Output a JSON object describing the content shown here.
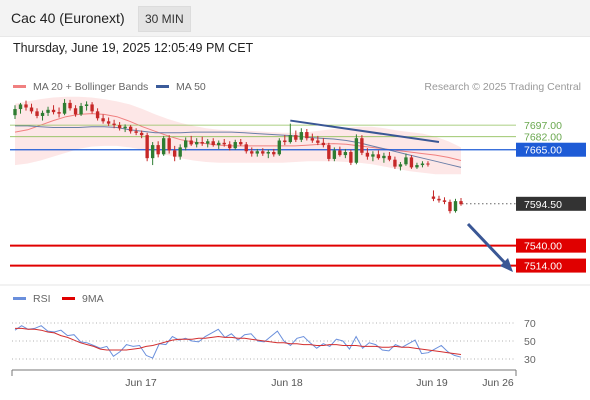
{
  "header": {
    "title": "Cac 40 (Euronext)",
    "interval": "30 MIN",
    "datetime": "Thursday, June 19, 2025 12:05:49 PM CET"
  },
  "legend_main": [
    {
      "label": "MA 20 + Bollinger Bands",
      "color": "#f08080"
    },
    {
      "label": "MA 50",
      "color": "#3b5b9a"
    }
  ],
  "credit": "Research © 2025 Trading Central",
  "legend_rsi": [
    {
      "label": "RSI",
      "color": "#6a8fdc"
    },
    {
      "label": "9MA",
      "color": "#e00000"
    }
  ],
  "colors": {
    "bull": "#2e7d32",
    "bear": "#c62828",
    "support": "#e00000",
    "pivot": "#1e5bd6",
    "resistance": "#8fbf5a",
    "last": "#333333",
    "trend": "#3a5795"
  },
  "chart_data": {
    "type": "candlestick",
    "price_axis": {
      "min": 7490,
      "max": 7735
    },
    "x_ticks": [
      "Jun 17",
      "Jun 18",
      "Jun 19",
      "Jun 26"
    ],
    "levels": [
      {
        "value": 7697.0,
        "label": "7697.00",
        "kind": "resistance"
      },
      {
        "value": 7682.0,
        "label": "7682.00",
        "kind": "resistance"
      },
      {
        "value": 7665.0,
        "label": "7665.00",
        "kind": "pivot"
      },
      {
        "value": 7594.5,
        "label": "7594.50",
        "kind": "last"
      },
      {
        "value": 7540.0,
        "label": "7540.00",
        "kind": "support"
      },
      {
        "value": 7514.0,
        "label": "7514.00",
        "kind": "support"
      }
    ],
    "candles": [
      {
        "o": 7710,
        "h": 7723,
        "l": 7705,
        "c": 7718
      },
      {
        "o": 7718,
        "h": 7726,
        "l": 7712,
        "c": 7724
      },
      {
        "o": 7724,
        "h": 7729,
        "l": 7716,
        "c": 7720
      },
      {
        "o": 7720,
        "h": 7725,
        "l": 7712,
        "c": 7715
      },
      {
        "o": 7715,
        "h": 7719,
        "l": 7706,
        "c": 7709
      },
      {
        "o": 7709,
        "h": 7716,
        "l": 7703,
        "c": 7713
      },
      {
        "o": 7713,
        "h": 7721,
        "l": 7709,
        "c": 7717
      },
      {
        "o": 7717,
        "h": 7723,
        "l": 7711,
        "c": 7714
      },
      {
        "o": 7714,
        "h": 7720,
        "l": 7707,
        "c": 7712
      },
      {
        "o": 7712,
        "h": 7731,
        "l": 7710,
        "c": 7726
      },
      {
        "o": 7726,
        "h": 7730,
        "l": 7716,
        "c": 7719
      },
      {
        "o": 7719,
        "h": 7723,
        "l": 7708,
        "c": 7711
      },
      {
        "o": 7711,
        "h": 7726,
        "l": 7709,
        "c": 7722
      },
      {
        "o": 7722,
        "h": 7728,
        "l": 7716,
        "c": 7724
      },
      {
        "o": 7724,
        "h": 7727,
        "l": 7712,
        "c": 7715
      },
      {
        "o": 7715,
        "h": 7719,
        "l": 7703,
        "c": 7706
      },
      {
        "o": 7706,
        "h": 7711,
        "l": 7699,
        "c": 7702
      },
      {
        "o": 7702,
        "h": 7707,
        "l": 7696,
        "c": 7699
      },
      {
        "o": 7699,
        "h": 7704,
        "l": 7693,
        "c": 7697
      },
      {
        "o": 7697,
        "h": 7701,
        "l": 7690,
        "c": 7693
      },
      {
        "o": 7693,
        "h": 7698,
        "l": 7688,
        "c": 7695
      },
      {
        "o": 7695,
        "h": 7697,
        "l": 7686,
        "c": 7689
      },
      {
        "o": 7689,
        "h": 7693,
        "l": 7684,
        "c": 7687
      },
      {
        "o": 7687,
        "h": 7690,
        "l": 7680,
        "c": 7684
      },
      {
        "o": 7684,
        "h": 7687,
        "l": 7650,
        "c": 7654
      },
      {
        "o": 7654,
        "h": 7675,
        "l": 7645,
        "c": 7671
      },
      {
        "o": 7671,
        "h": 7676,
        "l": 7655,
        "c": 7659
      },
      {
        "o": 7659,
        "h": 7683,
        "l": 7657,
        "c": 7680
      },
      {
        "o": 7680,
        "h": 7684,
        "l": 7660,
        "c": 7664
      },
      {
        "o": 7664,
        "h": 7670,
        "l": 7650,
        "c": 7656
      },
      {
        "o": 7656,
        "h": 7672,
        "l": 7652,
        "c": 7668
      },
      {
        "o": 7668,
        "h": 7681,
        "l": 7664,
        "c": 7677
      },
      {
        "o": 7677,
        "h": 7683,
        "l": 7670,
        "c": 7672
      },
      {
        "o": 7672,
        "h": 7680,
        "l": 7668,
        "c": 7675
      },
      {
        "o": 7675,
        "h": 7682,
        "l": 7670,
        "c": 7673
      },
      {
        "o": 7673,
        "h": 7679,
        "l": 7668,
        "c": 7676
      },
      {
        "o": 7676,
        "h": 7680,
        "l": 7669,
        "c": 7671
      },
      {
        "o": 7671,
        "h": 7677,
        "l": 7666,
        "c": 7674
      },
      {
        "o": 7674,
        "h": 7679,
        "l": 7669,
        "c": 7672
      },
      {
        "o": 7672,
        "h": 7676,
        "l": 7664,
        "c": 7667
      },
      {
        "o": 7667,
        "h": 7678,
        "l": 7665,
        "c": 7675
      },
      {
        "o": 7675,
        "h": 7679,
        "l": 7670,
        "c": 7672
      },
      {
        "o": 7672,
        "h": 7675,
        "l": 7660,
        "c": 7663
      },
      {
        "o": 7663,
        "h": 7668,
        "l": 7656,
        "c": 7660
      },
      {
        "o": 7660,
        "h": 7666,
        "l": 7656,
        "c": 7663
      },
      {
        "o": 7663,
        "h": 7667,
        "l": 7657,
        "c": 7660
      },
      {
        "o": 7660,
        "h": 7665,
        "l": 7654,
        "c": 7662
      },
      {
        "o": 7662,
        "h": 7666,
        "l": 7656,
        "c": 7659
      },
      {
        "o": 7659,
        "h": 7680,
        "l": 7657,
        "c": 7677
      },
      {
        "o": 7677,
        "h": 7684,
        "l": 7671,
        "c": 7675
      },
      {
        "o": 7675,
        "h": 7699,
        "l": 7673,
        "c": 7684
      },
      {
        "o": 7684,
        "h": 7690,
        "l": 7675,
        "c": 7678
      },
      {
        "o": 7678,
        "h": 7693,
        "l": 7675,
        "c": 7688
      },
      {
        "o": 7688,
        "h": 7692,
        "l": 7677,
        "c": 7680
      },
      {
        "o": 7680,
        "h": 7686,
        "l": 7674,
        "c": 7677
      },
      {
        "o": 7677,
        "h": 7683,
        "l": 7671,
        "c": 7674
      },
      {
        "o": 7674,
        "h": 7680,
        "l": 7668,
        "c": 7671
      },
      {
        "o": 7671,
        "h": 7674,
        "l": 7650,
        "c": 7653
      },
      {
        "o": 7653,
        "h": 7668,
        "l": 7650,
        "c": 7664
      },
      {
        "o": 7664,
        "h": 7669,
        "l": 7656,
        "c": 7658
      },
      {
        "o": 7658,
        "h": 7666,
        "l": 7654,
        "c": 7662
      },
      {
        "o": 7662,
        "h": 7665,
        "l": 7645,
        "c": 7648
      },
      {
        "o": 7648,
        "h": 7685,
        "l": 7646,
        "c": 7680
      },
      {
        "o": 7680,
        "h": 7684,
        "l": 7658,
        "c": 7661
      },
      {
        "o": 7661,
        "h": 7667,
        "l": 7652,
        "c": 7656
      },
      {
        "o": 7656,
        "h": 7663,
        "l": 7650,
        "c": 7659
      },
      {
        "o": 7659,
        "h": 7664,
        "l": 7652,
        "c": 7654
      },
      {
        "o": 7654,
        "h": 7661,
        "l": 7648,
        "c": 7657
      },
      {
        "o": 7657,
        "h": 7662,
        "l": 7650,
        "c": 7652
      },
      {
        "o": 7652,
        "h": 7656,
        "l": 7640,
        "c": 7643
      },
      {
        "o": 7643,
        "h": 7649,
        "l": 7638,
        "c": 7646
      },
      {
        "o": 7646,
        "h": 7660,
        "l": 7644,
        "c": 7655
      },
      {
        "o": 7655,
        "h": 7658,
        "l": 7640,
        "c": 7642
      },
      {
        "o": 7642,
        "h": 7648,
        "l": 7640,
        "c": 7645
      },
      {
        "o": 7645,
        "h": 7650,
        "l": 7642,
        "c": 7647
      },
      {
        "o": 7647,
        "h": 7650,
        "l": 7643,
        "c": 7646
      },
      {
        "o": 7604,
        "h": 7612,
        "l": 7598,
        "c": 7601
      },
      {
        "o": 7601,
        "h": 7605,
        "l": 7596,
        "c": 7599
      },
      {
        "o": 7599,
        "h": 7603,
        "l": 7594,
        "c": 7597
      },
      {
        "o": 7597,
        "h": 7600,
        "l": 7582,
        "c": 7585
      },
      {
        "o": 7585,
        "h": 7601,
        "l": 7583,
        "c": 7598
      },
      {
        "o": 7598,
        "h": 7602,
        "l": 7592,
        "c": 7594
      }
    ],
    "bollinger": {
      "upper": [
        7725,
        7728,
        7731,
        7733,
        7734,
        7734,
        7733,
        7731,
        7728,
        7724,
        7718,
        7711,
        7705,
        7700,
        7696,
        7693,
        7691,
        7690,
        7690,
        7689,
        7688,
        7687,
        7687,
        7688,
        7690,
        7692,
        7694,
        7695,
        7695,
        7693,
        7690,
        7688,
        7686,
        7682,
        7676,
        7668
      ],
      "lower": [
        7645,
        7647,
        7651,
        7656,
        7661,
        7666,
        7669,
        7670,
        7670,
        7668,
        7665,
        7662,
        7658,
        7654,
        7651,
        7649,
        7648,
        7648,
        7648,
        7648,
        7648,
        7648,
        7649,
        7650,
        7650,
        7650,
        7649,
        7648,
        7646,
        7643,
        7640,
        7637,
        7635,
        7633,
        7633,
        7633
      ]
    },
    "ma20": [
      7688,
      7691,
      7697,
      7703,
      7708,
      7711,
      7712,
      7711,
      7708,
      7702,
      7695,
      7689,
      7683,
      7678,
      7675,
      7673,
      7671,
      7670,
      7670,
      7670,
      7670,
      7670,
      7670,
      7671,
      7672,
      7673,
      7672,
      7670,
      7668,
      7666,
      7664,
      7662,
      7660,
      7658,
      7655,
      7651
    ],
    "ma50": [
      7696,
      7696,
      7695,
      7694,
      7694,
      7694,
      7695,
      7695,
      7694,
      7691,
      7689,
      7687,
      7687,
      7687,
      7688,
      7688,
      7688,
      7688,
      7687,
      7686,
      7685,
      7684,
      7683,
      7681,
      7680,
      7679,
      7677,
      7674,
      7670,
      7666,
      7662,
      7658,
      7654,
      7650,
      7646,
      7642
    ],
    "rsi": {
      "axis": {
        "min": 20,
        "max": 80
      },
      "ticks": [
        "70",
        "50",
        "30"
      ],
      "rsi": [
        62,
        67,
        63,
        64,
        67,
        61,
        60,
        62,
        56,
        57,
        49,
        48,
        45,
        42,
        44,
        33,
        38,
        46,
        44,
        45,
        34,
        31,
        47,
        46,
        55,
        51,
        53,
        50,
        49,
        55,
        59,
        63,
        54,
        58,
        51,
        57,
        58,
        50,
        49,
        55,
        61,
        50,
        45,
        53,
        55,
        48,
        42,
        47,
        44,
        52,
        50,
        41,
        55,
        42,
        48,
        46,
        40,
        39,
        46,
        43,
        47,
        51,
        36,
        37,
        41,
        45,
        38,
        34,
        32
      ],
      "ma9": [
        64,
        64,
        63,
        63,
        62,
        60,
        59,
        56,
        54,
        51,
        48,
        46,
        44,
        41,
        40,
        40,
        40,
        40,
        41,
        42,
        44,
        45,
        47,
        49,
        51,
        52,
        52,
        52,
        53,
        53,
        54,
        55,
        54,
        54,
        53,
        53,
        52,
        51,
        50,
        49,
        48,
        48,
        47,
        47,
        46,
        46,
        45,
        45,
        46,
        46,
        45,
        45,
        45,
        44,
        44,
        44,
        43,
        43,
        44,
        43,
        43,
        42,
        41,
        40,
        39,
        38,
        37,
        36,
        35
      ]
    }
  }
}
